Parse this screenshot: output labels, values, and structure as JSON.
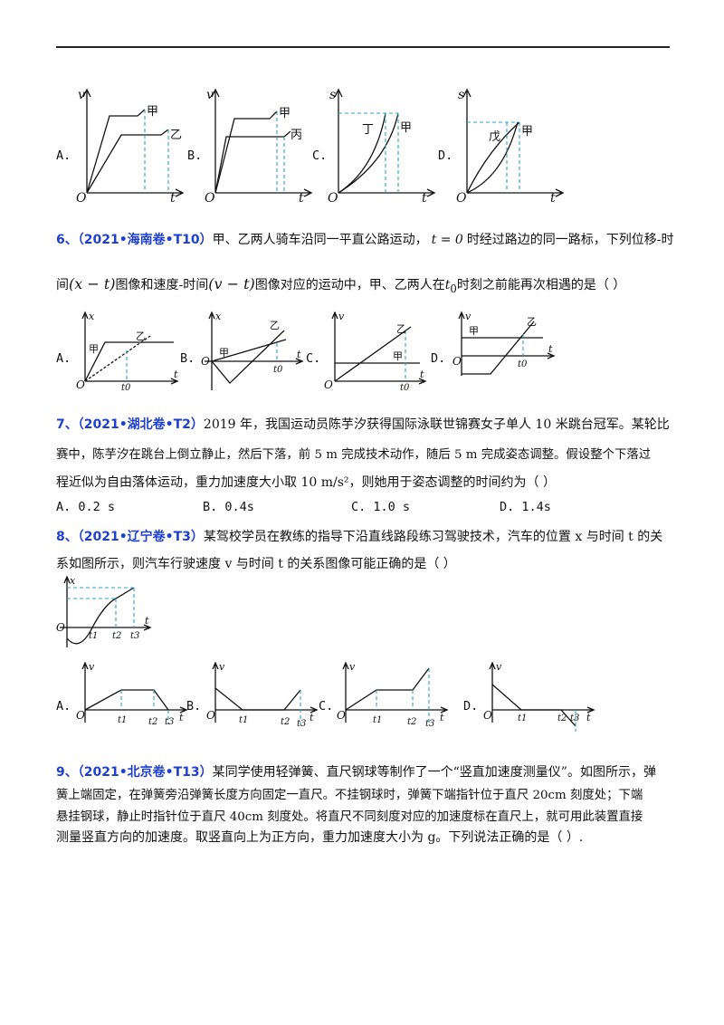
{
  "q5": {
    "options": [
      "A.",
      "B.",
      "C.",
      "D."
    ],
    "graph_a": {
      "y": "v",
      "x": "t",
      "o": "O",
      "c1": "甲",
      "c2": "乙"
    },
    "graph_b": {
      "y": "v",
      "x": "t",
      "o": "O",
      "c1": "甲",
      "c2": "丙"
    },
    "graph_c": {
      "y": "s",
      "x": "t",
      "o": "O",
      "c1": "丁",
      "c2": "甲"
    },
    "graph_d": {
      "y": "s",
      "x": "t",
      "o": "O",
      "c1": "戊",
      "c2": "甲"
    }
  },
  "q6": {
    "header": "6、（2021•海南卷•T10）",
    "line1_a": "甲、乙两人骑车沿同一平直公路运动，",
    "t_eq": "t = 0",
    "line1_b": "时经过路边的同一路标，下列位移-时",
    "line2_a": "间",
    "xt": "(x − t)",
    "line2_b": "图像和速度-时间",
    "vt": "(v − t)",
    "line2_c": "图像对应的运动中，甲、乙两人在",
    "t0": "t",
    "t0_sub": "0",
    "line2_d": "时刻之前能再次相遇的是（        ）",
    "options": [
      "A.",
      "B.",
      "C.",
      "D."
    ],
    "graph_a": {
      "y": "x",
      "x": "t",
      "o": "O",
      "c1": "甲",
      "c2": "乙",
      "t0": "t0"
    },
    "graph_b": {
      "y": "x",
      "x": "t",
      "o": "O",
      "c1": "甲",
      "c2": "乙",
      "t0": "t0"
    },
    "graph_c": {
      "y": "v",
      "x": "t",
      "o": "O",
      "c1": "甲",
      "c2": "乙",
      "t0": "t0"
    },
    "graph_d": {
      "y": "v",
      "x": "t",
      "o": "O",
      "c1": "甲",
      "c2": "乙",
      "t0": "t0"
    }
  },
  "q7": {
    "header": "7、（2021•湖北卷•T2）",
    "line1": "2019 年，我国运动员陈芋汐获得国际泳联世锦赛女子单人 10 米跳台冠军。某轮比",
    "line2": "赛中，陈芋汐在跳台上倒立静止，然后下落，前 5 m 完成技术动作，随后 5 m 完成姿态调整。假设整个下落过",
    "line3": "程近似为自由落体运动，重力加速度大小取 10 m/s²，则她用于姿态调整的时间约为（        ）",
    "opt_a": "A. 0.2 s",
    "opt_b": "B. 0.4s",
    "opt_c": "C. 1.0 s",
    "opt_d": "D. 1.4s"
  },
  "q8": {
    "header": "8、（2021•辽宁卷•T3）",
    "line1": "某驾校学员在教练的指导下沿直线路段练习驾驶技术，汽车的位置 x 与时间 t 的关",
    "line2": "系如图所示，则汽车行驶速度 v 与时间 t 的关系图像可能正确的是（        ）",
    "main_graph": {
      "y": "x",
      "x": "t",
      "o": "O",
      "t1": "t1",
      "t2": "t2",
      "t3": "t3"
    },
    "options": [
      "A.",
      "B.",
      "C.",
      "D."
    ],
    "opt_graph": {
      "y": "v",
      "x": "t",
      "o": "O",
      "t1": "t1",
      "t2": "t2",
      "t3": "t3"
    }
  },
  "q9": {
    "header": "9、（2021•北京卷•T13）",
    "line1": "某同学使用轻弹簧、直尺钢球等制作了一个“竖直加速度测量仪”。如图所示，弹",
    "line2": "簧上端固定，在弹簧旁沿弹簧长度方向固定一直尺。不挂钢球时，弹簧下端指针位于直尺 20cm 刻度处；下端",
    "line3": "悬挂钢球，静止时指针位于直尺 40cm 刻度处。将直尺不同刻度对应的加速度标在直尺上，就可用此装置直接",
    "line4": "测量竖直方向的加速度。取竖直向上为正方向，重力加速度大小为 g。下列说法正确的是（      ）."
  }
}
